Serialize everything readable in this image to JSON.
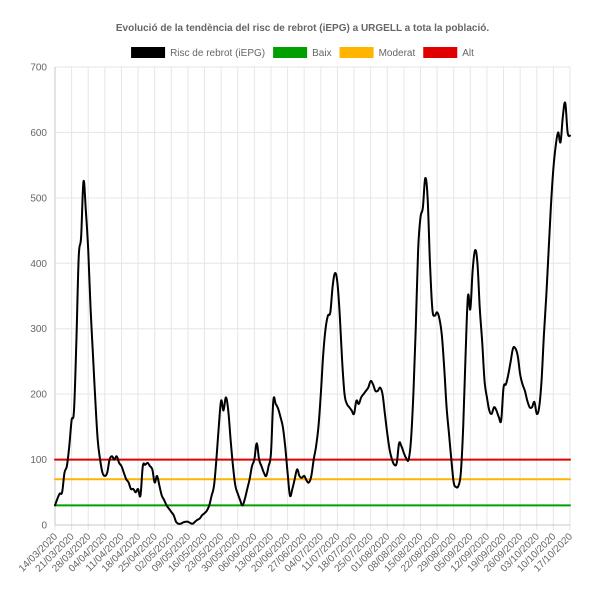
{
  "chart_data": {
    "type": "line",
    "title": "Evolució de la tendència del risc de rebrot (iEPG) a URGELL a tota la població.",
    "xlabel": "",
    "ylabel": "",
    "ylim": [
      0,
      700
    ],
    "yticks": [
      0,
      100,
      200,
      300,
      400,
      500,
      600,
      700
    ],
    "grid": true,
    "legend_position": "top",
    "x_start": "14/03/2020",
    "x_end": "17/10/2020",
    "x_tick_labels": [
      "14/03/2020",
      "21/03/2020",
      "28/03/2020",
      "04/04/2020",
      "11/04/2020",
      "18/04/2020",
      "25/04/2020",
      "02/05/2020",
      "09/05/2020",
      "16/05/2020",
      "23/05/2020",
      "30/05/2020",
      "06/06/2020",
      "13/06/2020",
      "20/06/2020",
      "27/06/2020",
      "04/07/2020",
      "11/07/2020",
      "18/07/2020",
      "25/07/2020",
      "01/08/2020",
      "08/08/2020",
      "15/08/2020",
      "22/08/2020",
      "29/08/2020",
      "05/09/2020",
      "12/09/2020",
      "19/09/2020",
      "26/09/2020",
      "03/10/2020",
      "10/10/2020",
      "17/10/2020"
    ],
    "series": [
      {
        "name": "Risc de rebrot (iEPG)",
        "color": "#000000",
        "points": [
          [
            "14/03/2020",
            30
          ],
          [
            "15/03/2020",
            40
          ],
          [
            "16/03/2020",
            48
          ],
          [
            "17/03/2020",
            50
          ],
          [
            "18/03/2020",
            80
          ],
          [
            "19/03/2020",
            90
          ],
          [
            "20/03/2020",
            120
          ],
          [
            "21/03/2020",
            160
          ],
          [
            "22/03/2020",
            175
          ],
          [
            "23/03/2020",
            280
          ],
          [
            "24/03/2020",
            410
          ],
          [
            "25/03/2020",
            440
          ],
          [
            "26/03/2020",
            525
          ],
          [
            "27/03/2020",
            480
          ],
          [
            "28/03/2020",
            420
          ],
          [
            "29/03/2020",
            330
          ],
          [
            "30/03/2020",
            260
          ],
          [
            "31/03/2020",
            190
          ],
          [
            "01/04/2020",
            130
          ],
          [
            "02/04/2020",
            100
          ],
          [
            "03/04/2020",
            80
          ],
          [
            "04/04/2020",
            75
          ],
          [
            "05/04/2020",
            80
          ],
          [
            "06/04/2020",
            100
          ],
          [
            "07/04/2020",
            105
          ],
          [
            "08/04/2020",
            100
          ],
          [
            "09/04/2020",
            105
          ],
          [
            "10/04/2020",
            95
          ],
          [
            "11/04/2020",
            90
          ],
          [
            "12/04/2020",
            80
          ],
          [
            "13/04/2020",
            70
          ],
          [
            "14/04/2020",
            65
          ],
          [
            "15/04/2020",
            55
          ],
          [
            "16/04/2020",
            55
          ],
          [
            "17/04/2020",
            50
          ],
          [
            "18/04/2020",
            55
          ],
          [
            "19/04/2020",
            45
          ],
          [
            "20/04/2020",
            90
          ],
          [
            "21/04/2020",
            92
          ],
          [
            "22/04/2020",
            95
          ],
          [
            "23/04/2020",
            90
          ],
          [
            "24/04/2020",
            85
          ],
          [
            "25/04/2020",
            65
          ],
          [
            "26/04/2020",
            75
          ],
          [
            "27/04/2020",
            60
          ],
          [
            "28/04/2020",
            45
          ],
          [
            "29/04/2020",
            38
          ],
          [
            "30/04/2020",
            30
          ],
          [
            "01/05/2020",
            25
          ],
          [
            "02/05/2020",
            20
          ],
          [
            "03/05/2020",
            15
          ],
          [
            "04/05/2020",
            5
          ],
          [
            "05/05/2020",
            2
          ],
          [
            "06/05/2020",
            2
          ],
          [
            "07/05/2020",
            4
          ],
          [
            "08/05/2020",
            5
          ],
          [
            "09/05/2020",
            5
          ],
          [
            "10/05/2020",
            3
          ],
          [
            "11/05/2020",
            2
          ],
          [
            "12/05/2020",
            5
          ],
          [
            "13/05/2020",
            8
          ],
          [
            "14/05/2020",
            10
          ],
          [
            "15/05/2020",
            15
          ],
          [
            "16/05/2020",
            18
          ],
          [
            "17/05/2020",
            22
          ],
          [
            "18/05/2020",
            30
          ],
          [
            "19/05/2020",
            45
          ],
          [
            "20/05/2020",
            60
          ],
          [
            "21/05/2020",
            100
          ],
          [
            "22/05/2020",
            150
          ],
          [
            "23/05/2020",
            190
          ],
          [
            "24/05/2020",
            175
          ],
          [
            "25/05/2020",
            195
          ],
          [
            "26/05/2020",
            175
          ],
          [
            "27/05/2020",
            130
          ],
          [
            "28/05/2020",
            90
          ],
          [
            "29/05/2020",
            60
          ],
          [
            "30/05/2020",
            48
          ],
          [
            "31/05/2020",
            38
          ],
          [
            "01/06/2020",
            30
          ],
          [
            "02/06/2020",
            40
          ],
          [
            "03/06/2020",
            55
          ],
          [
            "04/06/2020",
            70
          ],
          [
            "05/06/2020",
            90
          ],
          [
            "06/06/2020",
            100
          ],
          [
            "07/06/2020",
            125
          ],
          [
            "08/06/2020",
            100
          ],
          [
            "09/06/2020",
            90
          ],
          [
            "10/06/2020",
            80
          ],
          [
            "11/06/2020",
            75
          ],
          [
            "12/06/2020",
            90
          ],
          [
            "13/06/2020",
            110
          ],
          [
            "14/06/2020",
            190
          ],
          [
            "15/06/2020",
            185
          ],
          [
            "16/06/2020",
            178
          ],
          [
            "17/06/2020",
            165
          ],
          [
            "18/06/2020",
            150
          ],
          [
            "19/06/2020",
            120
          ],
          [
            "20/06/2020",
            80
          ],
          [
            "21/06/2020",
            45
          ],
          [
            "22/06/2020",
            55
          ],
          [
            "23/06/2020",
            70
          ],
          [
            "24/06/2020",
            85
          ],
          [
            "25/06/2020",
            75
          ],
          [
            "26/06/2020",
            72
          ],
          [
            "27/06/2020",
            75
          ],
          [
            "28/06/2020",
            68
          ],
          [
            "29/06/2020",
            65
          ],
          [
            "30/06/2020",
            75
          ],
          [
            "01/07/2020",
            100
          ],
          [
            "02/07/2020",
            120
          ],
          [
            "03/07/2020",
            150
          ],
          [
            "04/07/2020",
            200
          ],
          [
            "05/07/2020",
            260
          ],
          [
            "06/07/2020",
            300
          ],
          [
            "07/07/2020",
            320
          ],
          [
            "08/07/2020",
            325
          ],
          [
            "09/07/2020",
            365
          ],
          [
            "10/07/2020",
            385
          ],
          [
            "11/07/2020",
            370
          ],
          [
            "12/07/2020",
            320
          ],
          [
            "13/07/2020",
            250
          ],
          [
            "14/07/2020",
            200
          ],
          [
            "15/07/2020",
            185
          ],
          [
            "16/07/2020",
            180
          ],
          [
            "17/07/2020",
            175
          ],
          [
            "18/07/2020",
            170
          ],
          [
            "19/07/2020",
            190
          ],
          [
            "20/07/2020",
            185
          ],
          [
            "21/07/2020",
            195
          ],
          [
            "22/07/2020",
            200
          ],
          [
            "23/07/2020",
            205
          ],
          [
            "24/07/2020",
            210
          ],
          [
            "25/07/2020",
            220
          ],
          [
            "26/07/2020",
            215
          ],
          [
            "27/07/2020",
            205
          ],
          [
            "28/07/2020",
            205
          ],
          [
            "29/07/2020",
            210
          ],
          [
            "30/07/2020",
            200
          ],
          [
            "31/07/2020",
            170
          ],
          [
            "01/08/2020",
            140
          ],
          [
            "02/08/2020",
            115
          ],
          [
            "03/08/2020",
            100
          ],
          [
            "04/08/2020",
            92
          ],
          [
            "05/08/2020",
            95
          ],
          [
            "06/08/2020",
            125
          ],
          [
            "07/08/2020",
            120
          ],
          [
            "08/08/2020",
            110
          ],
          [
            "09/08/2020",
            102
          ],
          [
            "10/08/2020",
            100
          ],
          [
            "11/08/2020",
            130
          ],
          [
            "12/08/2020",
            200
          ],
          [
            "13/08/2020",
            300
          ],
          [
            "14/08/2020",
            420
          ],
          [
            "15/08/2020",
            470
          ],
          [
            "16/08/2020",
            485
          ],
          [
            "17/08/2020",
            530
          ],
          [
            "18/08/2020",
            500
          ],
          [
            "19/08/2020",
            400
          ],
          [
            "20/08/2020",
            330
          ],
          [
            "21/08/2020",
            320
          ],
          [
            "22/08/2020",
            325
          ],
          [
            "23/08/2020",
            315
          ],
          [
            "24/08/2020",
            290
          ],
          [
            "25/08/2020",
            240
          ],
          [
            "26/08/2020",
            180
          ],
          [
            "27/08/2020",
            140
          ],
          [
            "28/08/2020",
            100
          ],
          [
            "29/08/2020",
            65
          ],
          [
            "30/08/2020",
            58
          ],
          [
            "31/08/2020",
            60
          ],
          [
            "01/09/2020",
            80
          ],
          [
            "02/09/2020",
            150
          ],
          [
            "03/09/2020",
            260
          ],
          [
            "04/09/2020",
            350
          ],
          [
            "05/09/2020",
            330
          ],
          [
            "06/09/2020",
            390
          ],
          [
            "07/09/2020",
            420
          ],
          [
            "08/09/2020",
            400
          ],
          [
            "09/09/2020",
            330
          ],
          [
            "10/09/2020",
            280
          ],
          [
            "11/09/2020",
            220
          ],
          [
            "12/09/2020",
            195
          ],
          [
            "13/09/2020",
            175
          ],
          [
            "14/09/2020",
            170
          ],
          [
            "15/09/2020",
            180
          ],
          [
            "16/09/2020",
            175
          ],
          [
            "17/09/2020",
            165
          ],
          [
            "18/09/2020",
            160
          ],
          [
            "19/09/2020",
            210
          ],
          [
            "20/09/2020",
            215
          ],
          [
            "21/09/2020",
            230
          ],
          [
            "22/09/2020",
            250
          ],
          [
            "23/09/2020",
            270
          ],
          [
            "24/09/2020",
            270
          ],
          [
            "25/09/2020",
            258
          ],
          [
            "26/09/2020",
            230
          ],
          [
            "27/09/2020",
            215
          ],
          [
            "28/09/2020",
            205
          ],
          [
            "29/09/2020",
            190
          ],
          [
            "30/09/2020",
            180
          ],
          [
            "01/10/2020",
            180
          ],
          [
            "02/10/2020",
            188
          ],
          [
            "03/10/2020",
            170
          ],
          [
            "04/10/2020",
            180
          ],
          [
            "05/10/2020",
            220
          ],
          [
            "06/10/2020",
            290
          ],
          [
            "07/10/2020",
            350
          ],
          [
            "08/10/2020",
            420
          ],
          [
            "09/10/2020",
            490
          ],
          [
            "10/10/2020",
            545
          ],
          [
            "11/10/2020",
            580
          ],
          [
            "12/10/2020",
            600
          ],
          [
            "13/10/2020",
            585
          ],
          [
            "14/10/2020",
            625
          ],
          [
            "15/10/2020",
            645
          ],
          [
            "16/10/2020",
            600
          ],
          [
            "17/10/2020",
            595
          ]
        ]
      },
      {
        "name": "Baix",
        "color": "#00a000",
        "points": [
          [
            "14/03/2020",
            30
          ],
          [
            "17/10/2020",
            30
          ]
        ]
      },
      {
        "name": "Moderat",
        "color": "#ffb400",
        "points": [
          [
            "14/03/2020",
            70
          ],
          [
            "17/10/2020",
            70
          ]
        ]
      },
      {
        "name": "Alt",
        "color": "#e00000",
        "points": [
          [
            "14/03/2020",
            100
          ],
          [
            "17/10/2020",
            100
          ]
        ]
      }
    ]
  }
}
